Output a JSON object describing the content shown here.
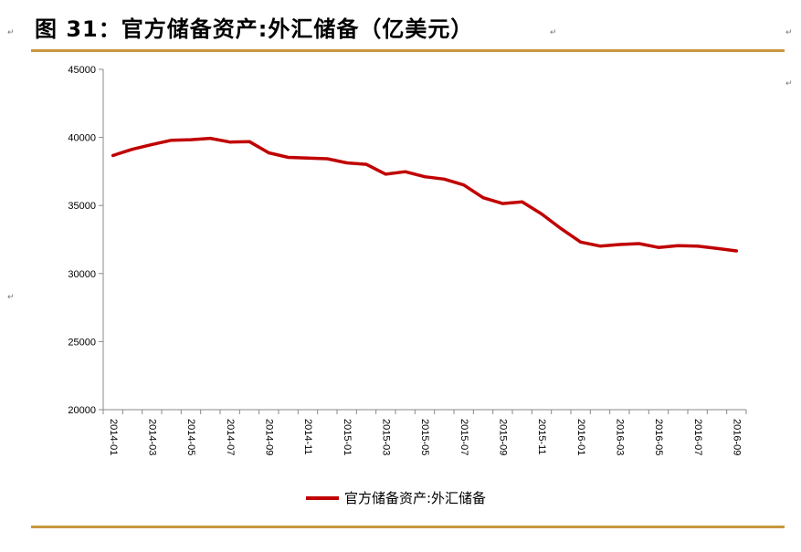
{
  "page": {
    "title": "图 31：官方储备资产:外汇储备（亿美元）",
    "return_marks": [
      "↵",
      "↵",
      "↵",
      "↵",
      "↵"
    ]
  },
  "chart_data": {
    "type": "line",
    "title": "",
    "xlabel": "",
    "ylabel": "",
    "ylim": [
      20000,
      45000
    ],
    "yticks": [
      "45000",
      "40000",
      "35000",
      "30000",
      "25000",
      "20000"
    ],
    "x_tick_labels": [
      "2014-01",
      "2014-03",
      "2014-05",
      "2014-07",
      "2014-09",
      "2014-11",
      "2015-01",
      "2015-03",
      "2015-05",
      "2015-07",
      "2015-09",
      "2015-11",
      "2016-01",
      "2016-03",
      "2016-05",
      "2016-07",
      "2016-09"
    ],
    "x": [
      "2014-01",
      "2014-02",
      "2014-03",
      "2014-04",
      "2014-05",
      "2014-06",
      "2014-07",
      "2014-08",
      "2014-09",
      "2014-10",
      "2014-11",
      "2014-12",
      "2015-01",
      "2015-02",
      "2015-03",
      "2015-04",
      "2015-05",
      "2015-06",
      "2015-07",
      "2015-08",
      "2015-09",
      "2015-10",
      "2015-11",
      "2015-12",
      "2016-01",
      "2016-02",
      "2016-03",
      "2016-04",
      "2016-05",
      "2016-06",
      "2016-07",
      "2016-08",
      "2016-09"
    ],
    "series": [
      {
        "name": "官方储备资产:外汇储备",
        "color": "#c00000",
        "values": [
          38670,
          39130,
          39480,
          39790,
          39830,
          39930,
          39660,
          39690,
          38870,
          38530,
          38480,
          38430,
          38130,
          38020,
          37300,
          37480,
          37110,
          36940,
          36510,
          35570,
          35140,
          35260,
          34380,
          33300,
          32310,
          32020,
          32130,
          32200,
          31920,
          32050,
          32010,
          31850,
          31660
        ]
      }
    ],
    "legend_position": "bottom",
    "grid": false
  }
}
